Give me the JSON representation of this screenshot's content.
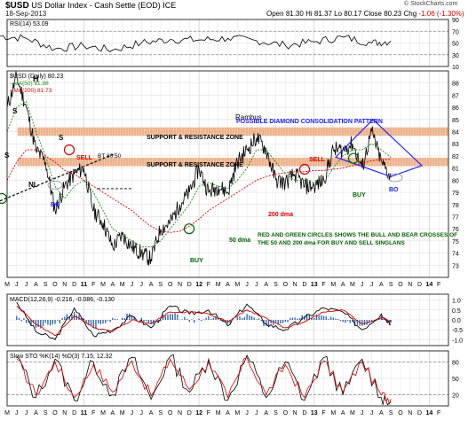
{
  "header": {
    "symbol": "$USD",
    "description": "US Dollar Index - Cash Settle (EOD)",
    "exchange": "ICE",
    "date": "18-Sep-2013",
    "open_label": "Open",
    "open": "81.30",
    "high_label": "Hi",
    "high": "81.37",
    "low_label": "Lo",
    "low": "80.17",
    "close_label": "Close",
    "close": "80.23",
    "change_label": "Chg",
    "change": "-1.06 (-1.30%)",
    "brand": "© StockCharts.com"
  },
  "colors": {
    "price": "#000000",
    "ma50": "#1a8a1a",
    "ma200": "#d40000",
    "zone": "#f4b183",
    "diamond": "#1a1aff",
    "macd_hist": "#2a5ea8",
    "annotation_red": "#d40000",
    "annotation_green": "#006400",
    "annotation_blue": "#1a1aff"
  },
  "chart_data": [
    {
      "type": "line",
      "panel": "rsi",
      "label": "RSI(14) 53.09",
      "ylim": [
        10,
        90
      ],
      "y_ticks": [
        10,
        30,
        50,
        70,
        90
      ],
      "levels": [
        30,
        70
      ],
      "x": [
        "2010-04",
        "2010-07",
        "2010-10",
        "2011-01",
        "2011-04",
        "2011-07",
        "2011-10",
        "2012-01",
        "2012-04",
        "2012-07",
        "2012-10",
        "2013-01",
        "2013-04",
        "2013-07",
        "2013-09"
      ],
      "series": [
        {
          "name": "RSI(14)",
          "values": [
            62,
            58,
            40,
            45,
            38,
            50,
            56,
            55,
            58,
            54,
            46,
            52,
            60,
            50,
            53
          ]
        }
      ]
    },
    {
      "type": "line",
      "panel": "price",
      "title": "Rambus",
      "ylim": [
        72,
        89
      ],
      "y_ticks": [
        73,
        74,
        75,
        76,
        77,
        78,
        79,
        80,
        81,
        82,
        83,
        84,
        85,
        86,
        87,
        88
      ],
      "x_labels": [
        "M",
        "J",
        "J",
        "A",
        "S",
        "O",
        "N",
        "D",
        "11",
        "F",
        "M",
        "A",
        "M",
        "J",
        "J",
        "A",
        "S",
        "O",
        "N",
        "D",
        "12",
        "F",
        "M",
        "A",
        "M",
        "J",
        "J",
        "A",
        "S",
        "O",
        "N",
        "D",
        "13",
        "F",
        "M",
        "A",
        "M",
        "J",
        "J",
        "A",
        "S",
        "O",
        "N",
        "D",
        "14",
        "F"
      ],
      "legend": [
        {
          "name": "$USD (Daily)",
          "value": "80.23"
        },
        {
          "name": "MA(50)",
          "value": "81.88"
        },
        {
          "name": "MA(200)",
          "value": "81.73"
        }
      ],
      "x": [
        "2010-05",
        "2010-06",
        "2010-07",
        "2010-08",
        "2010-09",
        "2010-10",
        "2010-11",
        "2010-12",
        "2011-01",
        "2011-02",
        "2011-03",
        "2011-04",
        "2011-05",
        "2011-06",
        "2011-07",
        "2011-08",
        "2011-09",
        "2011-10",
        "2011-11",
        "2011-12",
        "2012-01",
        "2012-02",
        "2012-03",
        "2012-04",
        "2012-05",
        "2012-06",
        "2012-07",
        "2012-08",
        "2012-09",
        "2012-10",
        "2012-11",
        "2012-12",
        "2013-01",
        "2013-02",
        "2013-03",
        "2013-04",
        "2013-05",
        "2013-06",
        "2013-07",
        "2013-08",
        "2013-09"
      ],
      "series": [
        {
          "name": "$USD (Daily)",
          "values": [
            86.0,
            88.5,
            86.0,
            82.5,
            81.5,
            77.5,
            79.5,
            80.5,
            81.0,
            77.5,
            76.5,
            74.5,
            75.5,
            74.5,
            74.0,
            73.5,
            76.0,
            76.5,
            78.0,
            79.0,
            81.0,
            79.0,
            79.5,
            79.0,
            81.5,
            82.5,
            83.5,
            82.5,
            80.0,
            79.8,
            80.5,
            79.5,
            79.5,
            80.0,
            82.5,
            82.5,
            83.0,
            81.0,
            84.0,
            81.5,
            80.23
          ]
        },
        {
          "name": "MA(50)",
          "values": [
            84.0,
            86.0,
            86.5,
            84.0,
            82.0,
            79.5,
            78.5,
            79.5,
            80.0,
            79.0,
            77.5,
            76.0,
            75.5,
            75.0,
            74.5,
            74.5,
            75.0,
            76.0,
            77.0,
            78.0,
            79.5,
            79.8,
            79.5,
            79.3,
            80.0,
            81.0,
            82.5,
            82.5,
            81.5,
            80.5,
            80.0,
            80.0,
            79.8,
            79.8,
            81.0,
            82.0,
            82.5,
            82.5,
            83.0,
            82.5,
            81.88
          ]
        },
        {
          "name": "MA(200)",
          "values": [
            80.0,
            81.5,
            82.5,
            82.5,
            82.0,
            81.5,
            80.8,
            80.5,
            80.0,
            79.5,
            79.0,
            78.5,
            78.0,
            77.5,
            76.8,
            76.2,
            75.8,
            75.7,
            75.8,
            76.2,
            76.8,
            77.5,
            78.0,
            78.5,
            79.0,
            79.5,
            80.0,
            80.3,
            80.5,
            80.6,
            80.7,
            80.7,
            80.8,
            80.8,
            80.9,
            81.0,
            81.2,
            81.4,
            81.6,
            81.7,
            81.73
          ]
        }
      ],
      "annotations": [
        {
          "text": "SUPPORT & RESISTANCE ZONE",
          "level": 84
        },
        {
          "text": "SUPPORT & RESISTANCE ZONE",
          "level": 81.5
        },
        {
          "text": "POSSIBLE DIAMOND CONSOLIDATION PATTERN"
        },
        {
          "text": "SELL"
        },
        {
          "text": "SELL"
        },
        {
          "text": "BUY"
        },
        {
          "text": "BUY"
        },
        {
          "text": "BO"
        },
        {
          "text": "BO"
        },
        {
          "text": "BT 80.50"
        },
        {
          "text": "50 dma"
        },
        {
          "text": "200 dma"
        },
        {
          "text": "RED AND GREEN CIRCLES SHOWS THE BULL AND BEAR CROSSES OF"
        },
        {
          "text": "THE 50 AND 200 dma FOR BUY AND SELL SINGLANS"
        },
        {
          "text": "H"
        },
        {
          "text": "S"
        },
        {
          "text": "S"
        },
        {
          "text": "S"
        },
        {
          "text": "NL"
        }
      ]
    },
    {
      "type": "line",
      "panel": "macd",
      "label": "MACD(12,26,9) -0.216, -0.086, -0.130",
      "ylim": [
        -1.3,
        1.3
      ],
      "y_ticks": [
        -1.0,
        -0.5,
        0.0,
        0.5,
        1.0
      ],
      "x": [
        "2010-06",
        "2010-08",
        "2010-10",
        "2010-12",
        "2011-02",
        "2011-04",
        "2011-06",
        "2011-08",
        "2011-10",
        "2011-12",
        "2012-02",
        "2012-04",
        "2012-06",
        "2012-08",
        "2012-10",
        "2012-12",
        "2013-02",
        "2013-04",
        "2013-06",
        "2013-08",
        "2013-09"
      ],
      "series": [
        {
          "name": "MACD",
          "values": [
            0.9,
            -0.6,
            -1.0,
            0.6,
            -0.8,
            -0.5,
            0.2,
            -0.4,
            0.7,
            0.3,
            0.5,
            -0.3,
            0.8,
            -0.2,
            -0.5,
            0.1,
            0.6,
            0.4,
            -0.5,
            0.3,
            -0.216
          ]
        },
        {
          "name": "Signal",
          "values": [
            0.7,
            -0.2,
            -0.8,
            0.2,
            -0.4,
            -0.6,
            0.0,
            -0.2,
            0.4,
            0.4,
            0.3,
            -0.1,
            0.5,
            0.1,
            -0.4,
            -0.1,
            0.4,
            0.5,
            -0.2,
            0.1,
            -0.086
          ]
        }
      ]
    },
    {
      "type": "line",
      "panel": "stochastic",
      "label": "Slow STO %K(14) %D(3) 7.15, 12.32",
      "ylim": [
        0,
        100
      ],
      "y_ticks": [
        20,
        50,
        80
      ],
      "levels": [
        20,
        80
      ],
      "x": [
        "2010-06",
        "2010-08",
        "2010-10",
        "2010-12",
        "2011-02",
        "2011-04",
        "2011-06",
        "2011-08",
        "2011-10",
        "2011-12",
        "2012-02",
        "2012-04",
        "2012-06",
        "2012-08",
        "2012-10",
        "2012-12",
        "2013-02",
        "2013-04",
        "2013-06",
        "2013-08",
        "2013-09"
      ],
      "series": [
        {
          "name": "%K",
          "values": [
            90,
            15,
            85,
            10,
            80,
            20,
            88,
            12,
            90,
            25,
            85,
            10,
            92,
            15,
            80,
            10,
            88,
            20,
            85,
            15,
            7.15
          ]
        },
        {
          "name": "%D",
          "values": [
            85,
            20,
            80,
            15,
            75,
            25,
            82,
            18,
            85,
            30,
            80,
            15,
            88,
            20,
            75,
            15,
            82,
            25,
            80,
            20,
            12.32
          ]
        }
      ]
    }
  ]
}
